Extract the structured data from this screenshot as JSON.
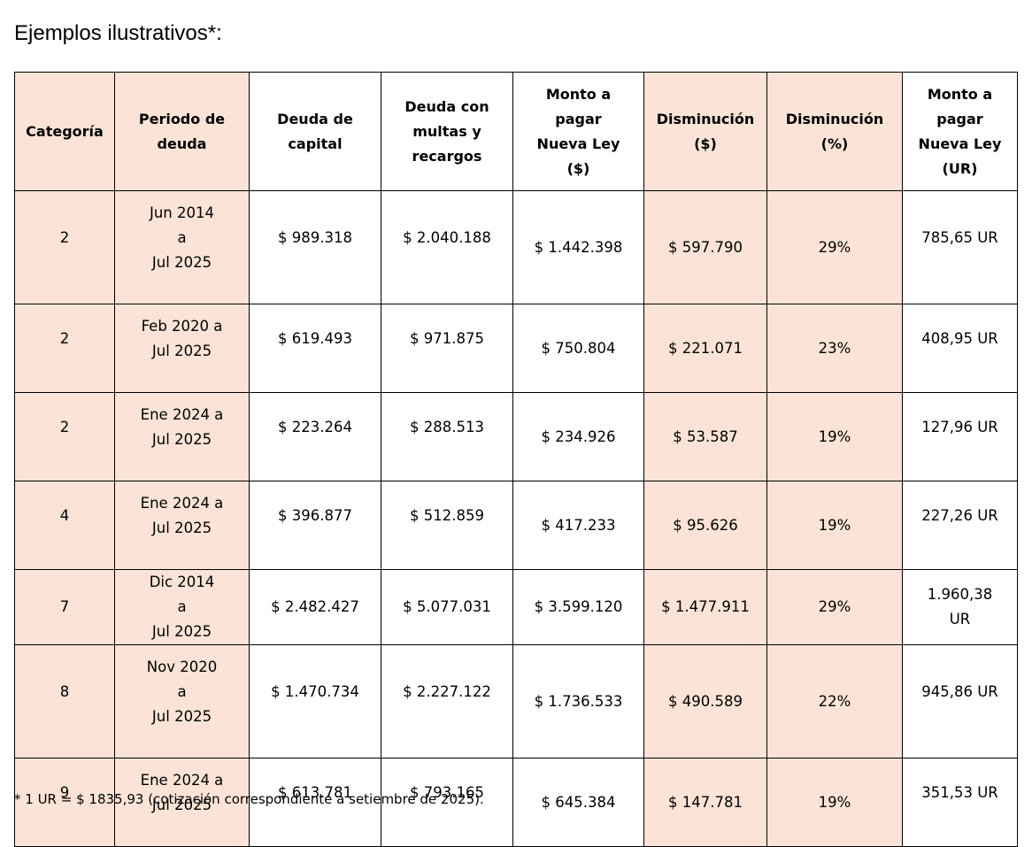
{
  "title": "Ejemplos ilustrativos*:",
  "table": {
    "header": [
      "Categoría",
      "Periodo de\ndeuda",
      "Deuda de\ncapital",
      "Deuda con\nmultas y\nrecargos",
      "Monto a\npagar\nNueva Ley\n($)",
      "Disminución\n($)",
      "Disminución\n(%)",
      "Monto a\npagar\nNueva Ley\n(UR)"
    ],
    "rows": [
      [
        "2",
        "Jun 2014\na\nJul 2025",
        "$ 989.318",
        "$ 2.040.188",
        "$ 1.442.398",
        "$ 597.790",
        "29%",
        "785,65 UR"
      ],
      [
        "2",
        "Feb 2020 a\nJul 2025",
        "$ 619.493",
        "$ 971.875",
        "$ 750.804",
        "$ 221.071",
        "23%",
        "408,95 UR"
      ],
      [
        "2",
        "Ene 2024 a\nJul 2025",
        "$ 223.264",
        "$ 288.513",
        "$ 234.926",
        "$ 53.587",
        "19%",
        "127,96 UR"
      ],
      [
        "4",
        "Ene 2024 a\nJul 2025",
        "$ 396.877",
        "$ 512.859",
        "$ 417.233",
        "$ 95.626",
        "19%",
        "227,26 UR"
      ],
      [
        "7",
        "Dic 2014\na\nJul 2025",
        "$ 2.482.427",
        "$ 5.077.031",
        "$ 3.599.120",
        "$ 1.477.911",
        "29%",
        "1.960,38\nUR"
      ],
      [
        "8",
        "Nov 2020\na\nJul 2025",
        "$ 1.470.734",
        "$ 2.227.122",
        "$ 1.736.533",
        "$ 490.589",
        "22%",
        "945,86 UR"
      ],
      [
        "9",
        "Ene 2024 a\nJul 2025",
        "$ 613.781",
        "$ 793.165",
        "$ 645.384",
        "$ 147.781",
        "19%",
        "351,53 UR"
      ]
    ]
  },
  "footnote": "* 1 UR = $ 1835,93 (cotización correspondiente a setiembre de 2025)."
}
